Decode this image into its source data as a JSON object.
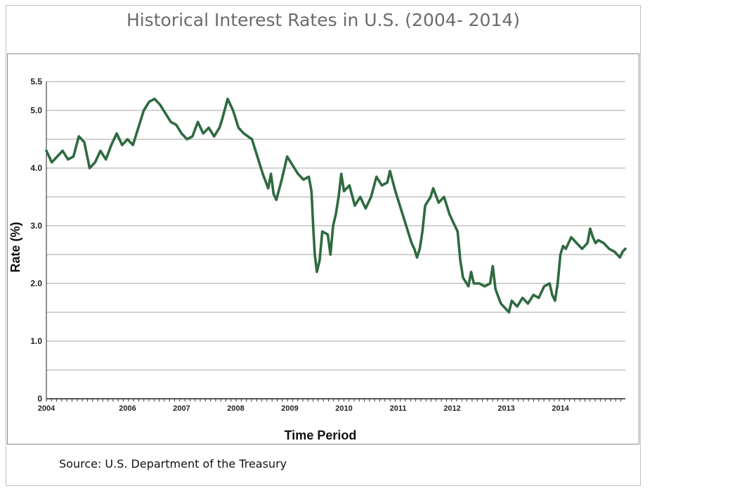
{
  "title": "Historical Interest Rates in U.S. (2004- 2014)",
  "source": "Source: U.S. Department of the Treasury",
  "colors": {
    "line": "#2e6a40",
    "grid": "#a6a6a6",
    "frame": "#8c8c8c"
  },
  "chart_data": {
    "type": "line",
    "title": "Historical Interest Rates in U.S. (2004- 2014)",
    "xlabel": "Time Period",
    "ylabel": "Rate (%)",
    "ylim": [
      0,
      5.5
    ],
    "ytick_values": [
      0,
      1.0,
      2.0,
      3.0,
      4.0,
      5.0,
      5.5
    ],
    "ytick_labels": [
      "0",
      "1.0",
      "2.0",
      "3.0",
      "4.0",
      "5.0",
      "5.5"
    ],
    "xlim": [
      2004,
      2014.7
    ],
    "xtick_values": [
      2004,
      2005.5,
      2006.5,
      2007.5,
      2008.5,
      2009.5,
      2010.5,
      2011.5,
      2012.5,
      2013.5,
      2014.5
    ],
    "xtick_labels": [
      "2004",
      "2006",
      "2007",
      "2008",
      "2009",
      "2010",
      "2011",
      "2012",
      "2013",
      "2014",
      ""
    ],
    "grid": true,
    "series": [
      {
        "values": [
          [
            2004.0,
            4.3
          ],
          [
            2004.1,
            4.1
          ],
          [
            2004.2,
            4.2
          ],
          [
            2004.3,
            4.3
          ],
          [
            2004.4,
            4.15
          ],
          [
            2004.5,
            4.2
          ],
          [
            2004.6,
            4.55
          ],
          [
            2004.7,
            4.45
          ],
          [
            2004.8,
            4.0
          ],
          [
            2004.9,
            4.1
          ],
          [
            2005.0,
            4.3
          ],
          [
            2005.1,
            4.15
          ],
          [
            2005.2,
            4.4
          ],
          [
            2005.3,
            4.6
          ],
          [
            2005.4,
            4.4
          ],
          [
            2005.5,
            4.5
          ],
          [
            2005.6,
            4.4
          ],
          [
            2005.7,
            4.7
          ],
          [
            2005.8,
            5.0
          ],
          [
            2005.9,
            5.15
          ],
          [
            2006.0,
            5.2
          ],
          [
            2006.1,
            5.1
          ],
          [
            2006.2,
            4.95
          ],
          [
            2006.3,
            4.8
          ],
          [
            2006.4,
            4.75
          ],
          [
            2006.5,
            4.6
          ],
          [
            2006.6,
            4.5
          ],
          [
            2006.7,
            4.55
          ],
          [
            2006.8,
            4.8
          ],
          [
            2006.9,
            4.6
          ],
          [
            2007.0,
            4.7
          ],
          [
            2007.1,
            4.55
          ],
          [
            2007.2,
            4.7
          ],
          [
            2007.25,
            4.85
          ],
          [
            2007.35,
            5.2
          ],
          [
            2007.45,
            5.0
          ],
          [
            2007.55,
            4.7
          ],
          [
            2007.65,
            4.6
          ],
          [
            2007.8,
            4.5
          ],
          [
            2007.9,
            4.2
          ],
          [
            2008.0,
            3.9
          ],
          [
            2008.1,
            3.65
          ],
          [
            2008.15,
            3.9
          ],
          [
            2008.2,
            3.55
          ],
          [
            2008.25,
            3.45
          ],
          [
            2008.35,
            3.8
          ],
          [
            2008.45,
            4.2
          ],
          [
            2008.55,
            4.05
          ],
          [
            2008.65,
            3.9
          ],
          [
            2008.75,
            3.8
          ],
          [
            2008.85,
            3.85
          ],
          [
            2008.9,
            3.6
          ],
          [
            2008.93,
            3.0
          ],
          [
            2008.96,
            2.5
          ],
          [
            2009.0,
            2.2
          ],
          [
            2009.05,
            2.4
          ],
          [
            2009.1,
            2.9
          ],
          [
            2009.2,
            2.85
          ],
          [
            2009.25,
            2.5
          ],
          [
            2009.3,
            3.0
          ],
          [
            2009.35,
            3.2
          ],
          [
            2009.4,
            3.5
          ],
          [
            2009.45,
            3.9
          ],
          [
            2009.5,
            3.6
          ],
          [
            2009.6,
            3.7
          ],
          [
            2009.7,
            3.35
          ],
          [
            2009.8,
            3.5
          ],
          [
            2009.9,
            3.3
          ],
          [
            2010.0,
            3.5
          ],
          [
            2010.1,
            3.85
          ],
          [
            2010.2,
            3.7
          ],
          [
            2010.3,
            3.75
          ],
          [
            2010.35,
            3.95
          ],
          [
            2010.45,
            3.6
          ],
          [
            2010.55,
            3.3
          ],
          [
            2010.65,
            3.0
          ],
          [
            2010.75,
            2.7
          ],
          [
            2010.8,
            2.6
          ],
          [
            2010.85,
            2.45
          ],
          [
            2010.9,
            2.6
          ],
          [
            2010.95,
            2.9
          ],
          [
            2011.0,
            3.35
          ],
          [
            2011.1,
            3.5
          ],
          [
            2011.15,
            3.65
          ],
          [
            2011.25,
            3.4
          ],
          [
            2011.35,
            3.5
          ],
          [
            2011.45,
            3.2
          ],
          [
            2011.55,
            3.0
          ],
          [
            2011.6,
            2.9
          ],
          [
            2011.65,
            2.4
          ],
          [
            2011.7,
            2.1
          ],
          [
            2011.8,
            1.95
          ],
          [
            2011.85,
            2.2
          ],
          [
            2011.9,
            2.0
          ],
          [
            2012.0,
            2.0
          ],
          [
            2012.1,
            1.95
          ],
          [
            2012.2,
            2.0
          ],
          [
            2012.25,
            2.3
          ],
          [
            2012.3,
            1.9
          ],
          [
            2012.4,
            1.65
          ],
          [
            2012.5,
            1.55
          ],
          [
            2012.55,
            1.5
          ],
          [
            2012.6,
            1.7
          ],
          [
            2012.7,
            1.6
          ],
          [
            2012.8,
            1.75
          ],
          [
            2012.9,
            1.65
          ],
          [
            2013.0,
            1.8
          ],
          [
            2013.1,
            1.75
          ],
          [
            2013.2,
            1.95
          ],
          [
            2013.3,
            2.0
          ],
          [
            2013.35,
            1.8
          ],
          [
            2013.4,
            1.7
          ],
          [
            2013.45,
            2.0
          ],
          [
            2013.5,
            2.5
          ],
          [
            2013.55,
            2.65
          ],
          [
            2013.6,
            2.6
          ],
          [
            2013.7,
            2.8
          ],
          [
            2013.8,
            2.7
          ],
          [
            2013.9,
            2.6
          ],
          [
            2014.0,
            2.7
          ],
          [
            2014.05,
            2.95
          ],
          [
            2014.1,
            2.8
          ],
          [
            2014.15,
            2.7
          ],
          [
            2014.2,
            2.75
          ],
          [
            2014.3,
            2.7
          ],
          [
            2014.4,
            2.6
          ],
          [
            2014.5,
            2.55
          ],
          [
            2014.6,
            2.45
          ],
          [
            2014.65,
            2.55
          ],
          [
            2014.7,
            2.6
          ]
        ]
      }
    ]
  }
}
